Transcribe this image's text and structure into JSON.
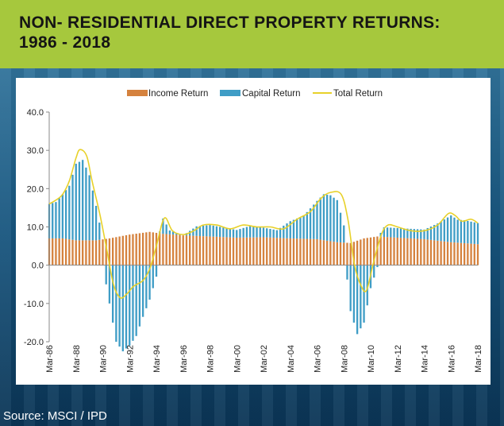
{
  "title": {
    "line1": "NON- RESIDENTIAL DIRECT PROPERTY RETURNS:",
    "line2": "1986 - 2018"
  },
  "source": "Source: MSCI / IPD",
  "colors": {
    "income": "#d5823e",
    "capital": "#3f9dc6",
    "total": "#e8d12a",
    "band": "#a6c83d"
  },
  "chart_data": {
    "type": "bar",
    "legend": [
      "Income Return",
      "Capital Return",
      "Total Return"
    ],
    "legend_position": "top",
    "ylim": [
      -20,
      40
    ],
    "yticks": [
      "40.0",
      "30.0",
      "20.0",
      "10.0",
      "0.0",
      "-10.0",
      "-20.0"
    ],
    "xticks": [
      "Mar-86",
      "Mar-88",
      "Mar-90",
      "Mar-92",
      "Mar-94",
      "Mar-96",
      "Mar-98",
      "Mar-00",
      "Mar-02",
      "Mar-04",
      "Mar-06",
      "Mar-08",
      "Mar-10",
      "Mar-12",
      "Mar-14",
      "Mar-16",
      "Mar-18"
    ],
    "x_start": 1986.0,
    "x_end": 2018.0,
    "income_points": [
      [
        1986.0,
        7.0
      ],
      [
        1987.0,
        7.0
      ],
      [
        1988.0,
        6.5
      ],
      [
        1989.5,
        6.5
      ],
      [
        1990.5,
        7.0
      ],
      [
        1992.0,
        8.0
      ],
      [
        1993.5,
        8.7
      ],
      [
        1994.5,
        8.2
      ],
      [
        1996.0,
        7.8
      ],
      [
        1998.0,
        7.5
      ],
      [
        2000.0,
        7.2
      ],
      [
        2002.0,
        7.3
      ],
      [
        2004.0,
        7.0
      ],
      [
        2006.0,
        6.8
      ],
      [
        2007.5,
        6.0
      ],
      [
        2008.5,
        5.8
      ],
      [
        2009.5,
        7.0
      ],
      [
        2010.5,
        7.5
      ],
      [
        2012.0,
        7.2
      ],
      [
        2014.0,
        6.8
      ],
      [
        2016.0,
        6.0
      ],
      [
        2018.0,
        5.5
      ]
    ],
    "capital_points": [
      [
        1986.0,
        9.0
      ],
      [
        1986.5,
        9.5
      ],
      [
        1987.0,
        11.5
      ],
      [
        1987.5,
        14.0
      ],
      [
        1988.0,
        20.0
      ],
      [
        1988.5,
        21.0
      ],
      [
        1989.0,
        17.0
      ],
      [
        1989.5,
        9.0
      ],
      [
        1990.0,
        0.0
      ],
      [
        1990.5,
        -10.0
      ],
      [
        1991.0,
        -20.0
      ],
      [
        1991.5,
        -22.5
      ],
      [
        1992.0,
        -21.0
      ],
      [
        1992.5,
        -18.5
      ],
      [
        1993.0,
        -13.5
      ],
      [
        1993.5,
        -9.0
      ],
      [
        1994.0,
        -3.0
      ],
      [
        1994.5,
        4.0
      ],
      [
        1995.0,
        1.0
      ],
      [
        1995.5,
        0.5
      ],
      [
        1996.0,
        0.0
      ],
      [
        1997.0,
        2.5
      ],
      [
        1998.0,
        3.0
      ],
      [
        1999.0,
        2.5
      ],
      [
        2000.0,
        2.0
      ],
      [
        2001.0,
        3.0
      ],
      [
        2002.0,
        2.5
      ],
      [
        2003.0,
        2.0
      ],
      [
        2004.0,
        4.5
      ],
      [
        2005.0,
        6.0
      ],
      [
        2006.0,
        10.0
      ],
      [
        2006.5,
        12.0
      ],
      [
        2007.0,
        12.0
      ],
      [
        2007.5,
        11.0
      ],
      [
        2008.0,
        4.5
      ],
      [
        2008.5,
        -12.0
      ],
      [
        2009.0,
        -18.0
      ],
      [
        2009.5,
        -15.0
      ],
      [
        2010.0,
        -6.0
      ],
      [
        2010.5,
        -0.5
      ],
      [
        2011.0,
        2.5
      ],
      [
        2012.0,
        2.5
      ],
      [
        2013.0,
        2.5
      ],
      [
        2014.0,
        2.5
      ],
      [
        2015.0,
        4.5
      ],
      [
        2016.0,
        7.0
      ],
      [
        2016.5,
        6.0
      ],
      [
        2017.0,
        6.0
      ],
      [
        2018.0,
        5.5
      ]
    ],
    "total_points": [
      [
        1986.0,
        16.0
      ],
      [
        1986.5,
        17.0
      ],
      [
        1987.0,
        18.5
      ],
      [
        1987.5,
        22.0
      ],
      [
        1988.0,
        28.0
      ],
      [
        1988.3,
        30.2
      ],
      [
        1988.8,
        28.5
      ],
      [
        1989.2,
        22.0
      ],
      [
        1989.8,
        13.0
      ],
      [
        1990.3,
        4.0
      ],
      [
        1990.8,
        -5.0
      ],
      [
        1991.3,
        -8.5
      ],
      [
        1991.8,
        -7.5
      ],
      [
        1992.3,
        -5.5
      ],
      [
        1993.0,
        -4.0
      ],
      [
        1993.5,
        -1.0
      ],
      [
        1994.0,
        5.0
      ],
      [
        1994.6,
        12.3
      ],
      [
        1995.2,
        9.0
      ],
      [
        1996.0,
        8.0
      ],
      [
        1996.8,
        9.0
      ],
      [
        1997.5,
        10.5
      ],
      [
        1998.5,
        10.5
      ],
      [
        1999.5,
        9.5
      ],
      [
        2000.5,
        10.5
      ],
      [
        2001.5,
        10.0
      ],
      [
        2002.5,
        10.0
      ],
      [
        2003.5,
        9.5
      ],
      [
        2004.5,
        12.0
      ],
      [
        2005.5,
        14.0
      ],
      [
        2006.3,
        17.5
      ],
      [
        2007.0,
        19.0
      ],
      [
        2007.8,
        18.5
      ],
      [
        2008.3,
        12.0
      ],
      [
        2008.8,
        0.0
      ],
      [
        2009.3,
        -5.5
      ],
      [
        2009.7,
        -6.5
      ],
      [
        2010.2,
        0.5
      ],
      [
        2010.8,
        8.0
      ],
      [
        2011.3,
        10.5
      ],
      [
        2012.0,
        10.0
      ],
      [
        2013.0,
        9.0
      ],
      [
        2014.0,
        9.0
      ],
      [
        2015.0,
        10.5
      ],
      [
        2015.8,
        13.5
      ],
      [
        2016.3,
        13.0
      ],
      [
        2016.8,
        11.5
      ],
      [
        2017.5,
        12.0
      ],
      [
        2018.0,
        11.0
      ]
    ]
  }
}
